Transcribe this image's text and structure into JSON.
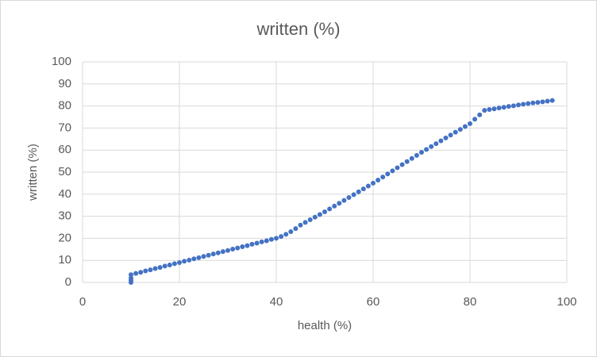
{
  "chart_data": {
    "type": "scatter",
    "title": "written (%)",
    "x_label": "health (%)",
    "y_label": "written (%)",
    "color": "#4472c4",
    "grid": true,
    "xlim": [
      0,
      100
    ],
    "xticks": [
      0,
      20,
      40,
      60,
      80,
      100
    ],
    "ylim": [
      0,
      100
    ],
    "yticks": [
      0,
      10,
      20,
      30,
      40,
      50,
      60,
      70,
      80,
      90,
      100
    ],
    "x": [
      10,
      10,
      10,
      10,
      11,
      12,
      13,
      14,
      15,
      16,
      17,
      18,
      19,
      20,
      21,
      22,
      23,
      24,
      25,
      26,
      27,
      28,
      29,
      30,
      31,
      32,
      33,
      34,
      35,
      36,
      37,
      38,
      39,
      40,
      41,
      42,
      43,
      44,
      45,
      46,
      47,
      48,
      49,
      50,
      51,
      52,
      53,
      54,
      55,
      56,
      57,
      58,
      59,
      60,
      61,
      62,
      63,
      64,
      65,
      66,
      67,
      68,
      69,
      70,
      71,
      72,
      73,
      74,
      75,
      76,
      77,
      78,
      79,
      80,
      81,
      82,
      83,
      84,
      85,
      86,
      87,
      88,
      89,
      90,
      91,
      92,
      93,
      94,
      95,
      96,
      97
    ],
    "values": [
      0,
      1,
      2,
      3.5,
      4.1,
      4.6,
      5.2,
      5.7,
      6.3,
      6.8,
      7.4,
      7.9,
      8.5,
      9,
      9.6,
      10.1,
      10.7,
      11.2,
      11.8,
      12.3,
      12.9,
      13.4,
      14,
      14.5,
      15.1,
      15.6,
      16.2,
      16.7,
      17.3,
      17.8,
      18.4,
      18.9,
      19.5,
      20,
      20.8,
      21.8,
      23,
      24.4,
      26,
      27.2,
      28.4,
      29.6,
      30.8,
      32,
      33.3,
      34.6,
      35.9,
      37.2,
      38.5,
      39.8,
      41.1,
      42.4,
      43.7,
      45,
      46.4,
      47.8,
      49.2,
      50.6,
      52,
      53.4,
      54.8,
      56.2,
      57.6,
      59,
      60.3,
      61.6,
      62.9,
      64.2,
      65.5,
      66.8,
      68.1,
      69.4,
      70.7,
      72,
      74,
      76,
      78,
      78.4,
      78.7,
      79.1,
      79.4,
      79.8,
      80.1,
      80.5,
      80.8,
      81.1,
      81.4,
      81.6,
      81.9,
      82.2,
      82.5
    ]
  }
}
